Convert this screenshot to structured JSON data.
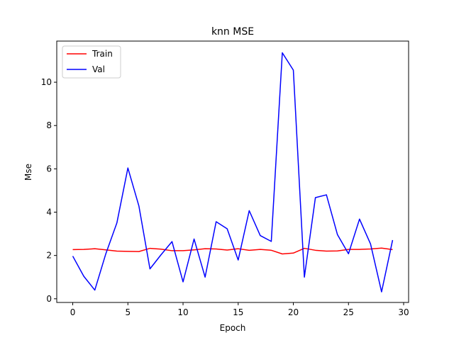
{
  "chart_data": {
    "type": "line",
    "title": "knn MSE",
    "xlabel": "Epoch",
    "ylabel": "Mse",
    "xlim": [
      -1.45,
      30.45
    ],
    "ylim": [
      -0.17,
      11.9
    ],
    "xticks": [
      0,
      5,
      10,
      15,
      20,
      25,
      30
    ],
    "yticks": [
      0,
      2,
      4,
      6,
      8,
      10
    ],
    "grid": false,
    "legend_position": "top-left",
    "x": [
      0,
      1,
      2,
      3,
      4,
      5,
      6,
      7,
      8,
      9,
      10,
      11,
      12,
      13,
      14,
      15,
      16,
      17,
      18,
      19,
      20,
      21,
      22,
      23,
      24,
      25,
      26,
      27,
      28,
      29
    ],
    "series": [
      {
        "name": "Train",
        "color": "#ff0000",
        "values": [
          2.27,
          2.28,
          2.31,
          2.26,
          2.2,
          2.19,
          2.18,
          2.33,
          2.29,
          2.22,
          2.22,
          2.26,
          2.31,
          2.3,
          2.25,
          2.31,
          2.24,
          2.28,
          2.24,
          2.07,
          2.11,
          2.33,
          2.24,
          2.2,
          2.21,
          2.28,
          2.28,
          2.3,
          2.34,
          2.27
        ]
      },
      {
        "name": "Val",
        "color": "#0000ff",
        "values": [
          1.97,
          1.04,
          0.4,
          2.08,
          3.5,
          6.04,
          4.28,
          1.38,
          2.03,
          2.64,
          0.78,
          2.76,
          1.0,
          3.56,
          3.23,
          1.79,
          4.07,
          2.92,
          2.65,
          11.36,
          10.56,
          1.0,
          4.67,
          4.8,
          2.96,
          2.08,
          3.68,
          2.53,
          0.32,
          2.71
        ]
      }
    ]
  }
}
